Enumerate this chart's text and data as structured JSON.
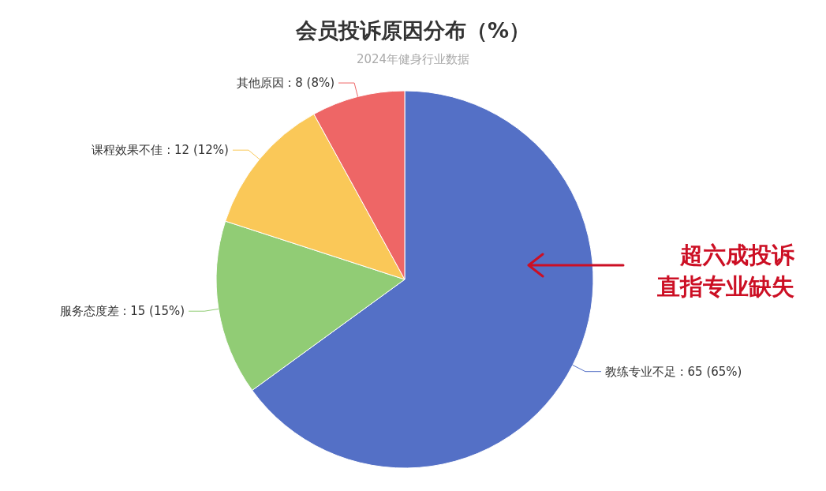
{
  "chart_data": {
    "type": "pie",
    "title": "会员投诉原因分布（%）",
    "subtitle": "2024年健身行业数据",
    "categories": [
      "教练专业不足",
      "服务态度差",
      "课程效果不佳",
      "其他原因"
    ],
    "values": [
      65,
      15,
      12,
      8
    ],
    "colors": [
      "#5470c6",
      "#91cc75",
      "#fac858",
      "#ee6666"
    ],
    "value_labels": [
      "65 (65%)",
      "15 (15%)",
      "12 (12%)",
      "8 (8%)"
    ],
    "annotations": [
      "超六成投诉",
      "直指专业缺失"
    ]
  }
}
